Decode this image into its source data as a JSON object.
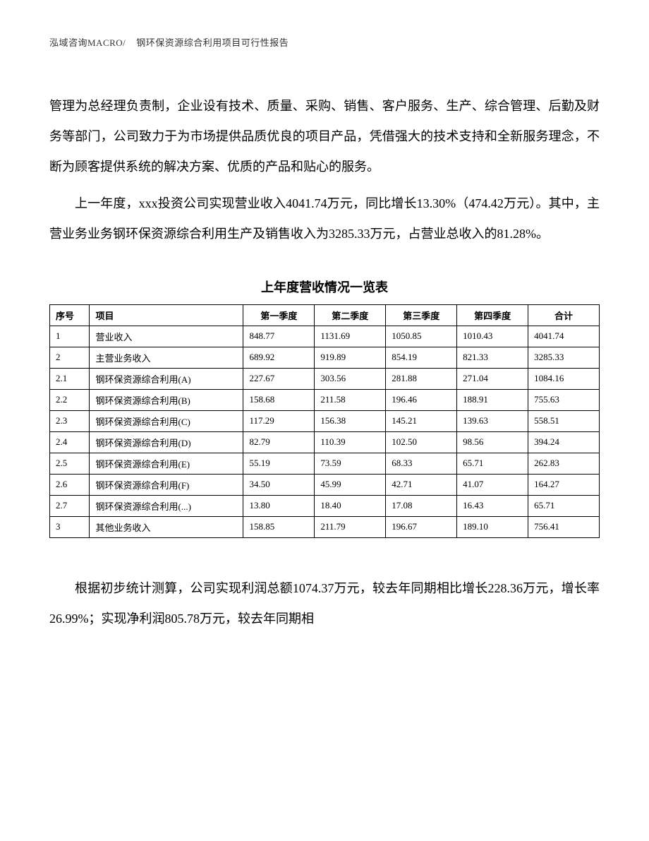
{
  "header": {
    "left": "泓域咨询MACRO/",
    "right": "钢环保资源综合利用项目可行性报告"
  },
  "paragraphs": {
    "p1": "管理为总经理负责制，企业设有技术、质量、采购、销售、客户服务、生产、综合管理、后勤及财务等部门，公司致力于为市场提供品质优良的项目产品，凭借强大的技术支持和全新服务理念，不断为顾客提供系统的解决方案、优质的产品和贴心的服务。",
    "p2": "上一年度，xxx投资公司实现营业收入4041.74万元，同比增长13.30%（474.42万元）。其中，主营业务业务钢环保资源综合利用生产及销售收入为3285.33万元，占营业总收入的81.28%。",
    "p3": "根据初步统计测算，公司实现利润总额1074.37万元，较去年同期相比增长228.36万元，增长率26.99%；实现净利润805.78万元，较去年同期相"
  },
  "table": {
    "title": "上年度营收情况一览表",
    "columns": [
      "序号",
      "项目",
      "第一季度",
      "第二季度",
      "第三季度",
      "第四季度",
      "合计"
    ],
    "rows": [
      [
        "1",
        "营业收入",
        "848.77",
        "1131.69",
        "1050.85",
        "1010.43",
        "4041.74"
      ],
      [
        "2",
        "主营业务收入",
        "689.92",
        "919.89",
        "854.19",
        "821.33",
        "3285.33"
      ],
      [
        "2.1",
        "钢环保资源综合利用(A)",
        "227.67",
        "303.56",
        "281.88",
        "271.04",
        "1084.16"
      ],
      [
        "2.2",
        "钢环保资源综合利用(B)",
        "158.68",
        "211.58",
        "196.46",
        "188.91",
        "755.63"
      ],
      [
        "2.3",
        "钢环保资源综合利用(C)",
        "117.29",
        "156.38",
        "145.21",
        "139.63",
        "558.51"
      ],
      [
        "2.4",
        "钢环保资源综合利用(D)",
        "82.79",
        "110.39",
        "102.50",
        "98.56",
        "394.24"
      ],
      [
        "2.5",
        "钢环保资源综合利用(E)",
        "55.19",
        "73.59",
        "68.33",
        "65.71",
        "262.83"
      ],
      [
        "2.6",
        "钢环保资源综合利用(F)",
        "34.50",
        "45.99",
        "42.71",
        "41.07",
        "164.27"
      ],
      [
        "2.7",
        "钢环保资源综合利用(...)",
        "13.80",
        "18.40",
        "17.08",
        "16.43",
        "65.71"
      ],
      [
        "3",
        "其他业务收入",
        "158.85",
        "211.79",
        "196.67",
        "189.10",
        "756.41"
      ]
    ]
  },
  "styles": {
    "page_bg": "#ffffff",
    "text_color": "#000000",
    "border_color": "#000000",
    "body_fontsize": 18,
    "table_fontsize": 13,
    "header_fontsize": 13,
    "line_height": 2.4
  }
}
